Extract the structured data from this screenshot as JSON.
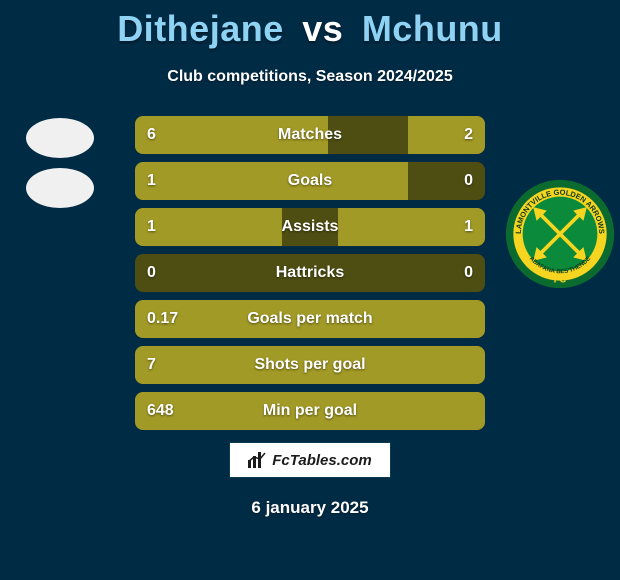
{
  "title": {
    "player1": "Dithejane",
    "vs": "vs",
    "player2": "Mchunu"
  },
  "subtitle": "Club competitions, Season 2024/2025",
  "colors": {
    "background": "#002b45",
    "bar_fill": "#a29a26",
    "bar_back": "#4e4e12",
    "title_player": "#8fd3f4",
    "title_vs": "#ffffff",
    "text": "#ffffff"
  },
  "stats": {
    "row_width": 350,
    "rows": [
      {
        "label": "Matches",
        "left": "6",
        "right": "2",
        "fill_left_pct": 55,
        "fill_right_pct": 22
      },
      {
        "label": "Goals",
        "left": "1",
        "right": "0",
        "fill_left_pct": 78,
        "fill_right_pct": 0
      },
      {
        "label": "Assists",
        "left": "1",
        "right": "1",
        "fill_left_pct": 42,
        "fill_right_pct": 42
      },
      {
        "label": "Hattricks",
        "left": "0",
        "right": "0",
        "fill_left_pct": 0,
        "fill_right_pct": 0
      },
      {
        "label": "Goals per match",
        "left": "0.17",
        "right": "",
        "fill_left_pct": 100,
        "fill_right_pct": 0
      },
      {
        "label": "Shots per goal",
        "left": "7",
        "right": "",
        "fill_left_pct": 100,
        "fill_right_pct": 0
      },
      {
        "label": "Min per goal",
        "left": "648",
        "right": "",
        "fill_left_pct": 100,
        "fill_right_pct": 0
      }
    ]
  },
  "footer": {
    "brand": "FcTables.com",
    "date": "6 january 2025"
  },
  "crest_right": {
    "outer": "#0b6b2f",
    "ring": "#f5d51f",
    "inner": "#0a8a3a",
    "text_top": "LAMONTVILLE",
    "text_mid": "GOLDEN ARROWS",
    "text_bot": "ABAFANA BES'THENDE"
  }
}
